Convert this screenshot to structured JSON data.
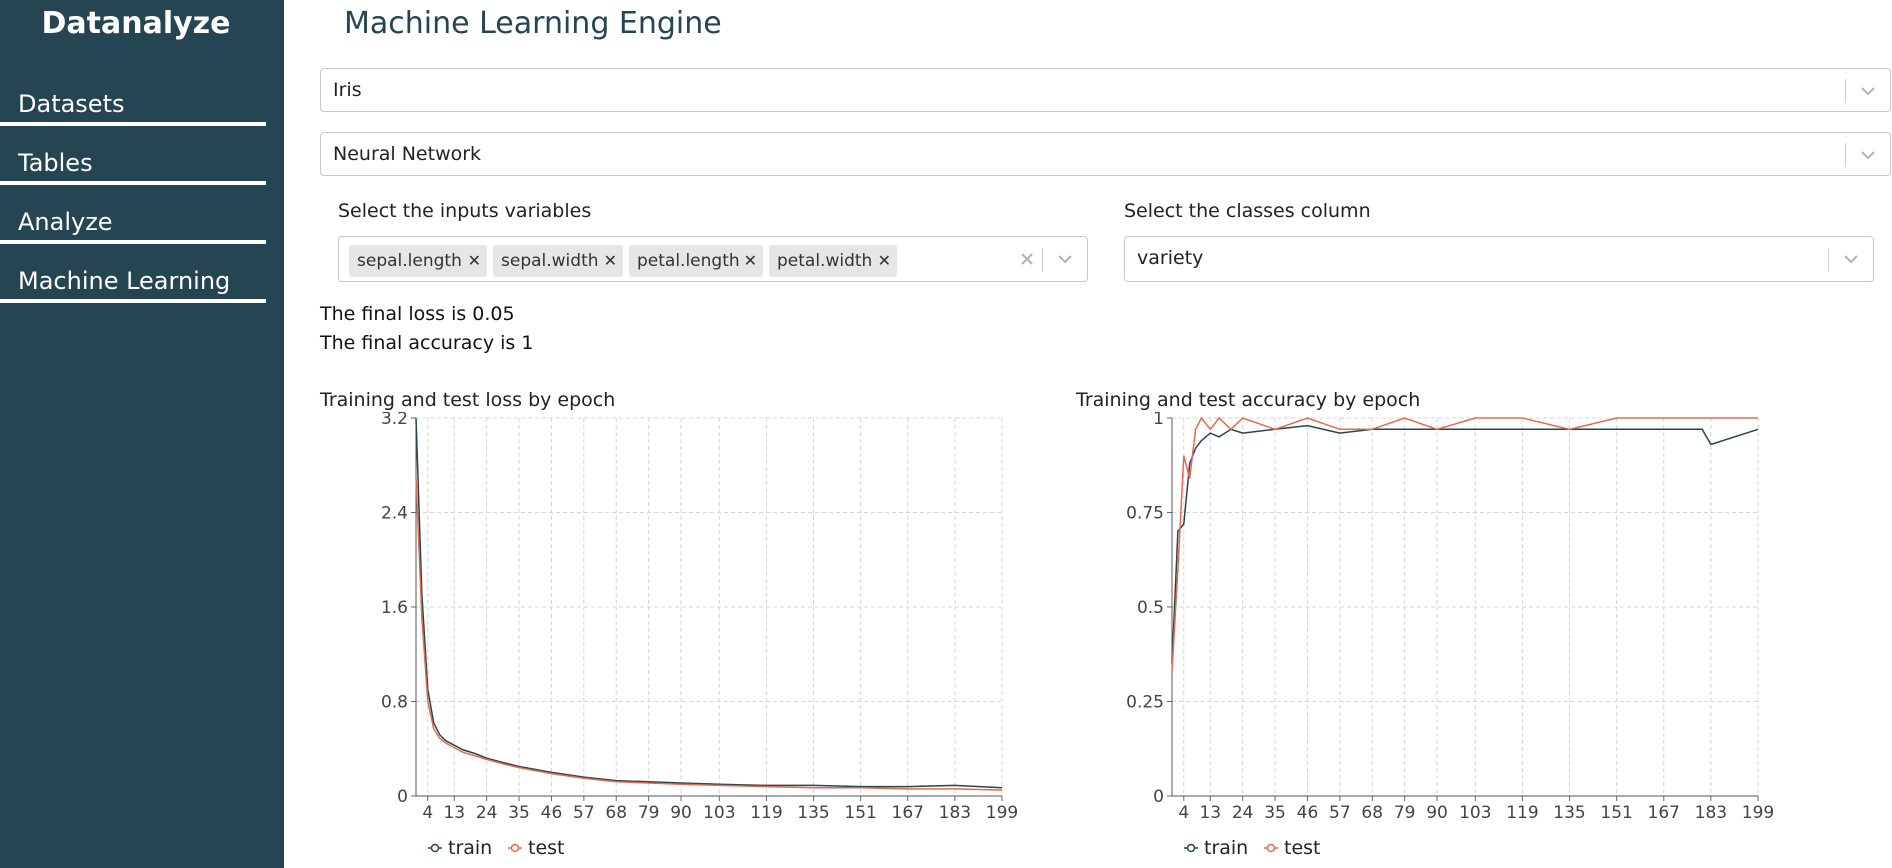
{
  "app": {
    "brand": "Datanalyze"
  },
  "sidebar": {
    "items": [
      {
        "label": "Datasets"
      },
      {
        "label": "Tables"
      },
      {
        "label": "Analyze"
      },
      {
        "label": "Machine Learning"
      }
    ]
  },
  "main": {
    "title": "Machine Learning Engine",
    "dataset_select": {
      "value": "Iris"
    },
    "model_select": {
      "value": "Neural Network"
    },
    "inputs": {
      "label": "Select the inputs variables",
      "tags": [
        "sepal.length",
        "sepal.width",
        "petal.length",
        "petal.width"
      ]
    },
    "classes": {
      "label": "Select the classes column",
      "value": "variety"
    },
    "results": {
      "loss_text": "The final loss is 0.05",
      "accuracy_text": "The final accuracy is 1"
    }
  },
  "colors": {
    "sidebar": "#254552",
    "train": "#254552",
    "test": "#e8694a"
  },
  "icons": {
    "remove_tag": "close-icon",
    "clear": "close-icon",
    "dropdown": "chevron-down-icon"
  },
  "chart_data": [
    {
      "type": "line",
      "title": "Training and test loss by epoch",
      "xlabel": "",
      "ylabel": "",
      "xlim": [
        0,
        199
      ],
      "ylim": [
        0,
        3.2
      ],
      "x_ticks": [
        4,
        13,
        24,
        35,
        46,
        57,
        68,
        79,
        90,
        103,
        119,
        135,
        151,
        167,
        183,
        199
      ],
      "y_ticks": [
        0,
        0.8,
        1.6,
        2.4,
        3.2
      ],
      "grid": true,
      "legend": "bottom-left",
      "series": [
        {
          "name": "train",
          "x": [
            0,
            2,
            4,
            6,
            8,
            10,
            13,
            16,
            20,
            24,
            30,
            35,
            46,
            57,
            68,
            79,
            90,
            103,
            119,
            135,
            151,
            167,
            183,
            199
          ],
          "values": [
            3.2,
            1.7,
            0.9,
            0.62,
            0.52,
            0.47,
            0.43,
            0.39,
            0.36,
            0.32,
            0.28,
            0.25,
            0.2,
            0.16,
            0.13,
            0.12,
            0.11,
            0.1,
            0.09,
            0.09,
            0.08,
            0.08,
            0.09,
            0.07
          ]
        },
        {
          "name": "test",
          "x": [
            0,
            2,
            4,
            6,
            8,
            10,
            13,
            16,
            20,
            24,
            30,
            35,
            46,
            57,
            68,
            79,
            90,
            103,
            119,
            135,
            151,
            167,
            183,
            199
          ],
          "values": [
            2.7,
            1.5,
            0.8,
            0.57,
            0.49,
            0.45,
            0.41,
            0.37,
            0.34,
            0.31,
            0.27,
            0.24,
            0.19,
            0.15,
            0.12,
            0.11,
            0.1,
            0.09,
            0.08,
            0.07,
            0.07,
            0.06,
            0.06,
            0.05
          ]
        }
      ]
    },
    {
      "type": "line",
      "title": "Training and test accuracy by epoch",
      "xlabel": "",
      "ylabel": "",
      "xlim": [
        0,
        199
      ],
      "ylim": [
        0,
        1
      ],
      "x_ticks": [
        4,
        13,
        24,
        35,
        46,
        57,
        68,
        79,
        90,
        103,
        119,
        135,
        151,
        167,
        183,
        199
      ],
      "y_ticks": [
        0,
        0.25,
        0.5,
        0.75,
        1
      ],
      "grid": true,
      "legend": "bottom-left",
      "series": [
        {
          "name": "train",
          "x": [
            0,
            2,
            4,
            6,
            8,
            10,
            13,
            16,
            20,
            24,
            35,
            46,
            57,
            68,
            79,
            90,
            103,
            119,
            135,
            151,
            167,
            180,
            183,
            199
          ],
          "values": [
            0.35,
            0.7,
            0.72,
            0.88,
            0.92,
            0.94,
            0.96,
            0.95,
            0.97,
            0.96,
            0.97,
            0.98,
            0.96,
            0.97,
            0.97,
            0.97,
            0.97,
            0.97,
            0.97,
            0.97,
            0.97,
            0.97,
            0.93,
            0.97
          ]
        },
        {
          "name": "test",
          "x": [
            0,
            2,
            4,
            6,
            8,
            10,
            13,
            16,
            20,
            24,
            35,
            46,
            57,
            68,
            79,
            90,
            103,
            119,
            135,
            151,
            167,
            183,
            199
          ],
          "values": [
            0.33,
            0.6,
            0.9,
            0.84,
            0.97,
            1.0,
            0.97,
            1.0,
            0.97,
            1.0,
            0.97,
            1.0,
            0.97,
            0.97,
            1.0,
            0.97,
            1.0,
            1.0,
            0.97,
            1.0,
            1.0,
            1.0,
            1.0
          ]
        }
      ]
    }
  ]
}
